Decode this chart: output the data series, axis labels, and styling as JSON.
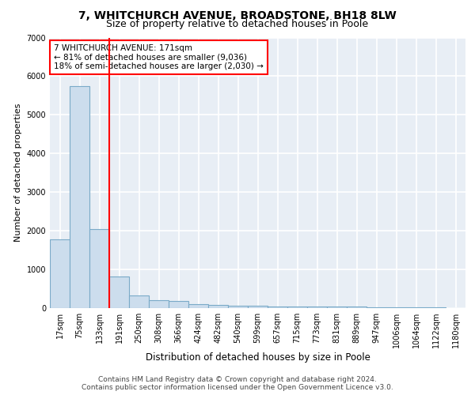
{
  "title1": "7, WHITCHURCH AVENUE, BROADSTONE, BH18 8LW",
  "title2": "Size of property relative to detached houses in Poole",
  "xlabel": "Distribution of detached houses by size in Poole",
  "ylabel": "Number of detached properties",
  "bin_labels": [
    "17sqm",
    "75sqm",
    "133sqm",
    "191sqm",
    "250sqm",
    "308sqm",
    "366sqm",
    "424sqm",
    "482sqm",
    "540sqm",
    "599sqm",
    "657sqm",
    "715sqm",
    "773sqm",
    "831sqm",
    "889sqm",
    "947sqm",
    "1006sqm",
    "1064sqm",
    "1122sqm",
    "1180sqm"
  ],
  "bar_heights": [
    1780,
    5750,
    2050,
    820,
    330,
    200,
    175,
    100,
    90,
    60,
    55,
    50,
    50,
    45,
    40,
    35,
    30,
    25,
    20,
    15,
    10
  ],
  "bar_color": "#ccdded",
  "bar_edge_color": "#7aaac8",
  "bar_linewidth": 0.8,
  "vline_color": "red",
  "vline_linewidth": 1.5,
  "annotation_text": "7 WHITCHURCH AVENUE: 171sqm\n← 81% of detached houses are smaller (9,036)\n18% of semi-detached houses are larger (2,030) →",
  "annotation_box_color": "white",
  "annotation_box_edge_color": "red",
  "ylim": [
    0,
    7000
  ],
  "yticks": [
    0,
    1000,
    2000,
    3000,
    4000,
    5000,
    6000,
    7000
  ],
  "footer_line1": "Contains HM Land Registry data © Crown copyright and database right 2024.",
  "footer_line2": "Contains public sector information licensed under the Open Government Licence v3.0.",
  "bg_color": "#e8eef5",
  "grid_color": "#ffffff",
  "title1_fontsize": 10,
  "title2_fontsize": 9,
  "xlabel_fontsize": 8.5,
  "ylabel_fontsize": 8,
  "tick_fontsize": 7,
  "footer_fontsize": 6.5,
  "annotation_fontsize": 7.5
}
